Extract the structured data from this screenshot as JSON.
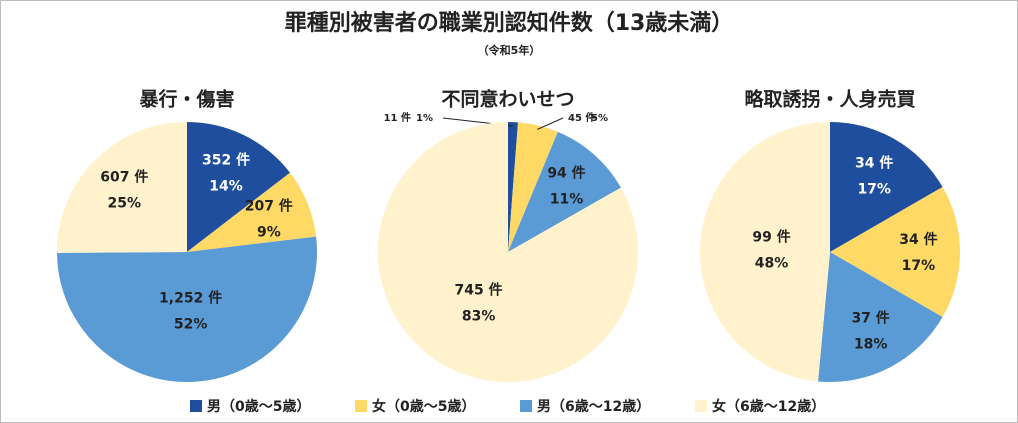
{
  "title": "罪種別被害者の職業別認知件数（13歳未満）",
  "subtitle": "（令和5年）",
  "chart_data": [
    {
      "type": "pie",
      "title": "暴行・傷害",
      "categories": [
        "男（0歳～5歳）",
        "女（0歳～5歳）",
        "男（6歳～12歳）",
        "女（6歳～12歳）"
      ],
      "colors": [
        "#1f4e9f",
        "#ffd966",
        "#5b9bd5",
        "#fff2cc"
      ],
      "values": [
        352,
        207,
        1252,
        607
      ],
      "value_labels": [
        "352 件",
        "207 件",
        "1,252 件",
        "607 件"
      ],
      "percents": [
        14,
        9,
        52,
        25
      ],
      "percent_labels": [
        "14%",
        "9%",
        "52%",
        "25%"
      ]
    },
    {
      "type": "pie",
      "title": "不同意わいせつ",
      "categories": [
        "男（0歳～5歳）",
        "女（0歳～5歳）",
        "男（6歳～12歳）",
        "女（6歳～12歳）"
      ],
      "colors": [
        "#1f4e9f",
        "#ffd966",
        "#5b9bd5",
        "#fff2cc"
      ],
      "values": [
        11,
        45,
        94,
        745
      ],
      "value_labels": [
        "11 件",
        "45 件",
        "94 件",
        "745 件"
      ],
      "percents": [
        1,
        5,
        11,
        83
      ],
      "percent_labels": [
        "1%",
        "5%",
        "11%",
        "83%"
      ]
    },
    {
      "type": "pie",
      "title": "略取誘拐・人身売買",
      "categories": [
        "男（0歳～5歳）",
        "女（0歳～5歳）",
        "男（6歳～12歳）",
        "女（6歳～12歳）"
      ],
      "colors": [
        "#1f4e9f",
        "#ffd966",
        "#5b9bd5",
        "#fff2cc"
      ],
      "values": [
        34,
        34,
        37,
        99
      ],
      "value_labels": [
        "34 件",
        "34 件",
        "37 件",
        "99 件"
      ],
      "percents": [
        17,
        17,
        18,
        48
      ],
      "percent_labels": [
        "17%",
        "17%",
        "18%",
        "48%"
      ]
    }
  ]
}
